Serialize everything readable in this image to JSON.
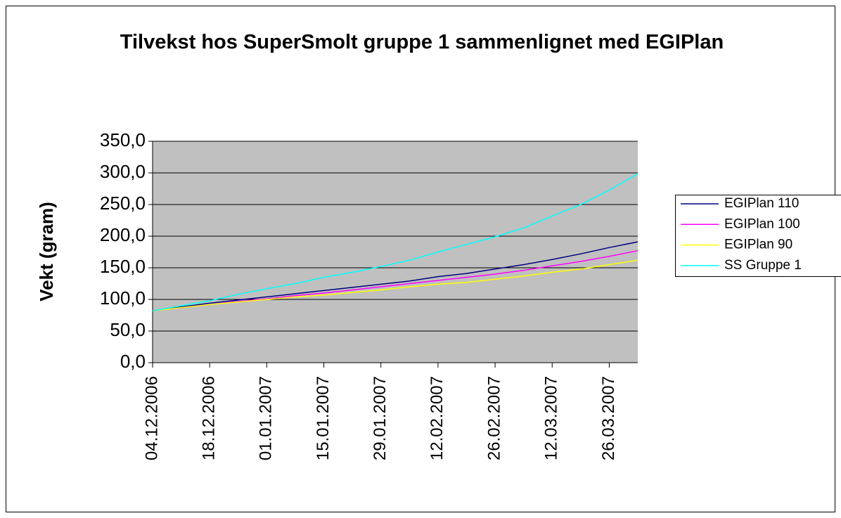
{
  "chart_data": {
    "type": "line",
    "title": "Tilvekst hos SuperSmolt gruppe 1 sammenlignet med EGIPlan",
    "y_label": "Vekt (gram)",
    "categories": [
      "04.12.2006",
      null,
      "18.12.2006",
      null,
      "01.01.2007",
      null,
      "15.01.2007",
      null,
      "29.01.2007",
      null,
      "12.02.2007",
      null,
      "26.02.2007",
      null,
      "12.03.2007",
      null,
      "26.03.2007",
      null
    ],
    "series": [
      {
        "name": "EGIPlan 110",
        "color": "#000080",
        "values": [
          82,
          88,
          94,
          99,
          104,
          109,
          114,
          119,
          124,
          129,
          136,
          141,
          148,
          155,
          163,
          172,
          182,
          191
        ]
      },
      {
        "name": "EGIPlan 100",
        "color": "#ff00ff",
        "values": [
          82,
          87,
          92,
          97,
          101,
          106,
          110,
          115,
          120,
          125,
          130,
          135,
          140,
          146,
          153,
          160,
          168,
          177
        ]
      },
      {
        "name": "EGIPlan 90",
        "color": "#ffff00",
        "values": [
          82,
          87,
          92,
          96,
          100,
          104,
          107,
          111,
          115,
          120,
          124,
          127,
          132,
          137,
          143,
          148,
          155,
          162
        ]
      },
      {
        "name": "SS Gruppe 1",
        "color": "#00ffff",
        "values": [
          82,
          90,
          98,
          108,
          117,
          125,
          135,
          143,
          152,
          162,
          175,
          187,
          199,
          213,
          232,
          250,
          273,
          299
        ]
      }
    ],
    "ylim": [
      0,
      350
    ],
    "yticks": [
      {
        "value": 0,
        "label": "0,0"
      },
      {
        "value": 50,
        "label": "50,0"
      },
      {
        "value": 100,
        "label": "100,0"
      },
      {
        "value": 150,
        "label": "150,0"
      },
      {
        "value": 200,
        "label": "200,0"
      },
      {
        "value": 250,
        "label": "250,0"
      },
      {
        "value": 300,
        "label": "300,0"
      },
      {
        "value": 350,
        "label": "350,0"
      }
    ],
    "grid": true,
    "plot_background": "#c0c0c0",
    "legend": "right"
  }
}
